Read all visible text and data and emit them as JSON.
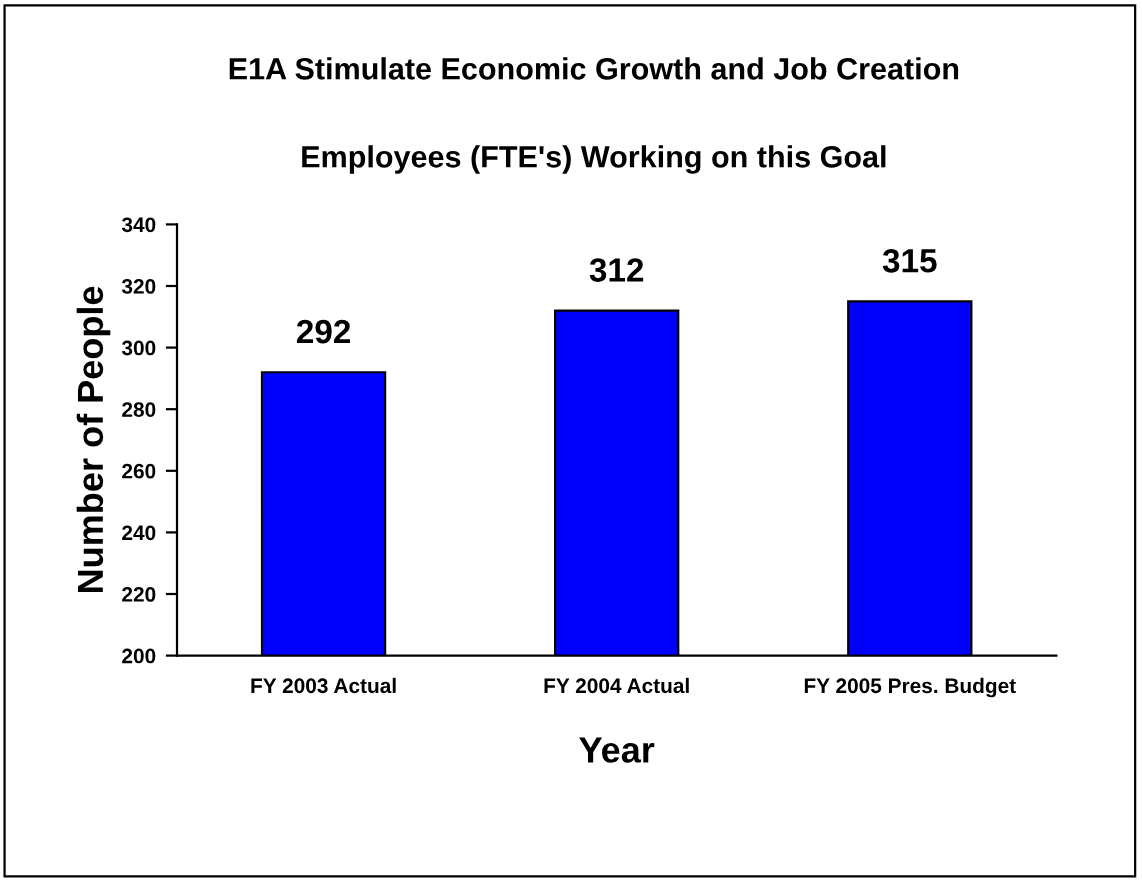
{
  "chart_data": {
    "type": "bar",
    "title": "E1A Stimulate Economic Growth and Job Creation",
    "subtitle": "Employees (FTE's) Working on this Goal",
    "xlabel": "Year",
    "ylabel": "Number of People",
    "categories": [
      "FY 2003 Actual",
      "FY 2004 Actual",
      "FY 2005 Pres. Budget"
    ],
    "values": [
      292,
      312,
      315
    ],
    "color": "#0000ff",
    "ylim": [
      200,
      340
    ],
    "yticks": [
      200,
      220,
      240,
      260,
      280,
      300,
      320,
      340
    ],
    "grid": false,
    "legend": false,
    "data_labels": true
  }
}
